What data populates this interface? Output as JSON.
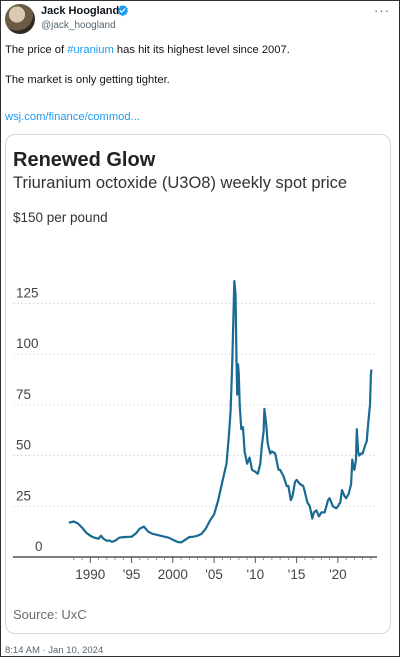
{
  "tweet": {
    "author_name": "Jack Hoogland",
    "author_handle": "@jack_hoogland",
    "text_before_hashtag": "The price of ",
    "hashtag": "#uranium",
    "text_after_hashtag": " has hit its highest level since 2007.",
    "line2": "The market is only getting tighter.",
    "link": "wsj.com/finance/commod...",
    "timestamp": "8:14 AM · Jan 10, 2024",
    "more_icon": "more-icon"
  },
  "chart_data": {
    "type": "line",
    "title": "Renewed Glow",
    "subtitle": "Triuranium octoxide (U3O8) weekly spot price",
    "ylabel": "$150 per pound",
    "source": "Source: UxC",
    "y_ticks": [
      "125",
      "100",
      "75",
      "50",
      "25",
      "0"
    ],
    "y_tick_values": [
      125,
      100,
      75,
      50,
      25,
      0
    ],
    "x_tick_labels": [
      "1990",
      "'95",
      "2000",
      "'05",
      "'10",
      "'15",
      "'20"
    ],
    "x_tick_values": [
      1990,
      1995,
      2000,
      2005,
      2010,
      2015,
      2020
    ],
    "xlim": [
      1986,
      2024.5
    ],
    "ylim": [
      0,
      150
    ],
    "line_color": "#1a6b94",
    "series": [
      {
        "points": [
          [
            1987.5,
            17
          ],
          [
            1988.0,
            17.5
          ],
          [
            1988.5,
            16.5
          ],
          [
            1989.0,
            14.5
          ],
          [
            1989.5,
            12
          ],
          [
            1990.0,
            10.5
          ],
          [
            1990.5,
            9.5
          ],
          [
            1991.0,
            9
          ],
          [
            1991.3,
            10.5
          ],
          [
            1991.6,
            9
          ],
          [
            1992.0,
            8
          ],
          [
            1992.3,
            8.2
          ],
          [
            1992.6,
            7.5
          ],
          [
            1993.0,
            8
          ],
          [
            1993.5,
            9.5
          ],
          [
            1994.0,
            9.8
          ],
          [
            1995.0,
            10
          ],
          [
            1995.5,
            11.5
          ],
          [
            1996.0,
            14
          ],
          [
            1996.5,
            15
          ],
          [
            1997.0,
            12.5
          ],
          [
            1997.5,
            11.5
          ],
          [
            1998.0,
            11
          ],
          [
            1998.5,
            10.5
          ],
          [
            1999.0,
            10
          ],
          [
            1999.5,
            9.5
          ],
          [
            2000.0,
            8.5
          ],
          [
            2000.5,
            7.5
          ],
          [
            2001.0,
            7.2
          ],
          [
            2001.5,
            8.5
          ],
          [
            2002.0,
            9.8
          ],
          [
            2002.5,
            10
          ],
          [
            2003.0,
            10.5
          ],
          [
            2003.5,
            11.5
          ],
          [
            2004.0,
            14
          ],
          [
            2004.5,
            18
          ],
          [
            2005.0,
            21
          ],
          [
            2005.5,
            28
          ],
          [
            2006.0,
            37
          ],
          [
            2006.5,
            46
          ],
          [
            2006.8,
            60
          ],
          [
            2007.0,
            72
          ],
          [
            2007.2,
            95
          ],
          [
            2007.35,
            120
          ],
          [
            2007.45,
            136
          ],
          [
            2007.6,
            130
          ],
          [
            2007.7,
            100
          ],
          [
            2007.8,
            80
          ],
          [
            2007.9,
            95
          ],
          [
            2008.0,
            90
          ],
          [
            2008.1,
            75
          ],
          [
            2008.3,
            63
          ],
          [
            2008.5,
            64
          ],
          [
            2008.7,
            52
          ],
          [
            2009.0,
            46
          ],
          [
            2009.3,
            49
          ],
          [
            2009.6,
            43
          ],
          [
            2010.0,
            42
          ],
          [
            2010.3,
            41
          ],
          [
            2010.6,
            46
          ],
          [
            2010.8,
            55
          ],
          [
            2011.0,
            62
          ],
          [
            2011.1,
            73
          ],
          [
            2011.3,
            66
          ],
          [
            2011.5,
            56
          ],
          [
            2011.8,
            51
          ],
          [
            2012.0,
            52
          ],
          [
            2012.4,
            51
          ],
          [
            2012.8,
            43
          ],
          [
            2013.0,
            43
          ],
          [
            2013.4,
            40
          ],
          [
            2013.8,
            35
          ],
          [
            2014.0,
            35
          ],
          [
            2014.3,
            28
          ],
          [
            2014.5,
            30
          ],
          [
            2014.8,
            37
          ],
          [
            2015.0,
            38
          ],
          [
            2015.4,
            36
          ],
          [
            2015.8,
            35
          ],
          [
            2016.0,
            32
          ],
          [
            2016.3,
            27
          ],
          [
            2016.6,
            25
          ],
          [
            2016.9,
            19
          ],
          [
            2017.1,
            22
          ],
          [
            2017.4,
            23
          ],
          [
            2017.7,
            20
          ],
          [
            2018.0,
            22
          ],
          [
            2018.4,
            22
          ],
          [
            2018.8,
            28
          ],
          [
            2019.0,
            29
          ],
          [
            2019.4,
            25
          ],
          [
            2019.8,
            24
          ],
          [
            2020.0,
            25
          ],
          [
            2020.3,
            27
          ],
          [
            2020.5,
            33
          ],
          [
            2020.8,
            30
          ],
          [
            2021.0,
            29
          ],
          [
            2021.3,
            31
          ],
          [
            2021.6,
            36
          ],
          [
            2021.75,
            48
          ],
          [
            2021.9,
            44
          ],
          [
            2022.0,
            43
          ],
          [
            2022.2,
            48
          ],
          [
            2022.3,
            63
          ],
          [
            2022.45,
            52
          ],
          [
            2022.6,
            50
          ],
          [
            2022.8,
            51
          ],
          [
            2023.0,
            51
          ],
          [
            2023.3,
            55
          ],
          [
            2023.5,
            57
          ],
          [
            2023.7,
            67
          ],
          [
            2023.9,
            75
          ],
          [
            2024.0,
            90
          ],
          [
            2024.05,
            92
          ]
        ]
      }
    ]
  }
}
